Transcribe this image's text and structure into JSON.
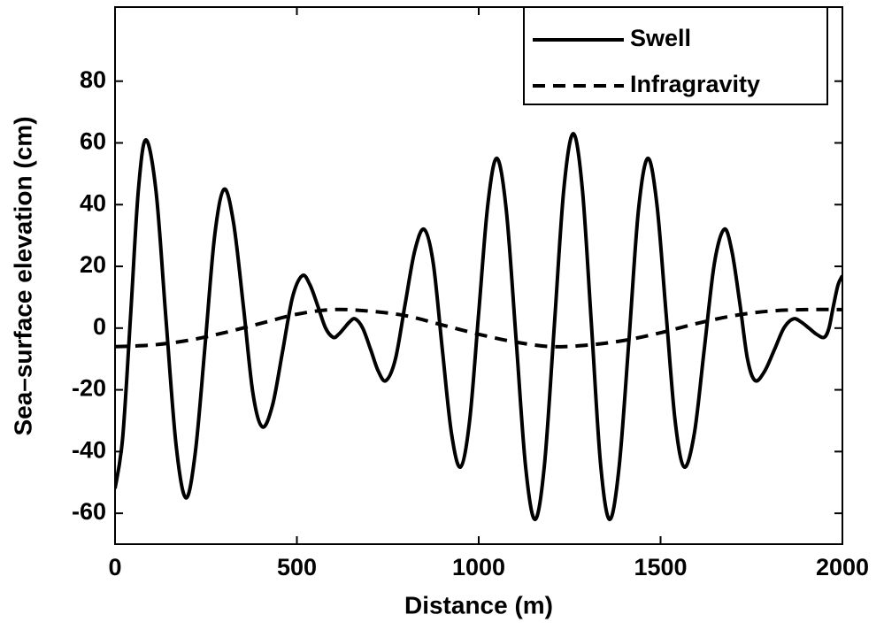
{
  "chart_data": {
    "type": "line",
    "xlabel": "Distance (m)",
    "ylabel": "Sea–surface elevation (cm)",
    "xlim": [
      0,
      2000
    ],
    "xticks": [
      0,
      500,
      1000,
      1500,
      2000
    ],
    "ylim": [
      -70,
      104
    ],
    "yticks": [
      -60,
      -40,
      -20,
      0,
      20,
      40,
      60,
      80
    ],
    "grid": false,
    "legend": "upper right",
    "series": [
      {
        "name": "Swell",
        "color": "#000000",
        "style": "solid",
        "x": [
          0,
          21,
          43,
          64,
          85,
          113,
          140,
          168,
          195,
          221,
          248,
          274,
          300,
          326,
          353,
          379,
          405,
          433,
          460,
          488,
          515,
          536,
          558,
          579,
          600,
          615,
          630,
          645,
          660,
          681,
          703,
          724,
          745,
          771,
          798,
          824,
          850,
          875,
          900,
          925,
          950,
          975,
          1000,
          1025,
          1050,
          1076,
          1103,
          1129,
          1155,
          1181,
          1208,
          1234,
          1260,
          1285,
          1310,
          1335,
          1360,
          1386,
          1413,
          1439,
          1465,
          1490,
          1515,
          1540,
          1565,
          1593,
          1620,
          1648,
          1675,
          1696,
          1718,
          1739,
          1760,
          1786,
          1813,
          1839,
          1865,
          1886,
          1908,
          1929,
          1950,
          1963,
          1975,
          1988,
          2000
        ],
        "values": [
          -52,
          -35.5,
          4.5,
          44.5,
          61,
          44,
          3,
          -38,
          -55,
          -40,
          -5,
          30,
          45,
          34,
          7,
          -21,
          -32,
          -25,
          -8,
          10,
          17,
          14,
          7,
          0,
          -3,
          -2,
          0,
          2,
          3,
          0,
          -7,
          -14,
          -17,
          -10,
          8,
          25,
          32,
          21,
          -7,
          -34,
          -45,
          -30,
          5,
          40,
          55,
          38,
          -4,
          -45,
          -62,
          -44,
          1,
          45,
          63,
          45,
          1,
          -44,
          -62,
          -45,
          -4,
          38,
          55,
          40,
          5,
          -30,
          -45,
          -34,
          -7,
          21,
          32,
          25,
          8,
          -10,
          -17,
          -14,
          -7,
          0,
          3,
          2,
          0,
          -2,
          -3,
          0,
          7,
          14,
          17
        ]
      },
      {
        "name": "Infragravity",
        "color": "#000000",
        "style": "dashed",
        "x": [
          0,
          100,
          200,
          300,
          400,
          500,
          600,
          700,
          800,
          900,
          1000,
          1100,
          1200,
          1300,
          1400,
          1500,
          1600,
          1700,
          1800,
          1900,
          2000
        ],
        "values": [
          -6,
          -5.5,
          -4,
          -1.5,
          1.5,
          4.5,
          6,
          5.5,
          4,
          1,
          -2,
          -4.5,
          -6,
          -5.5,
          -4,
          -1.5,
          1.5,
          4,
          5.5,
          6,
          6
        ]
      }
    ]
  }
}
